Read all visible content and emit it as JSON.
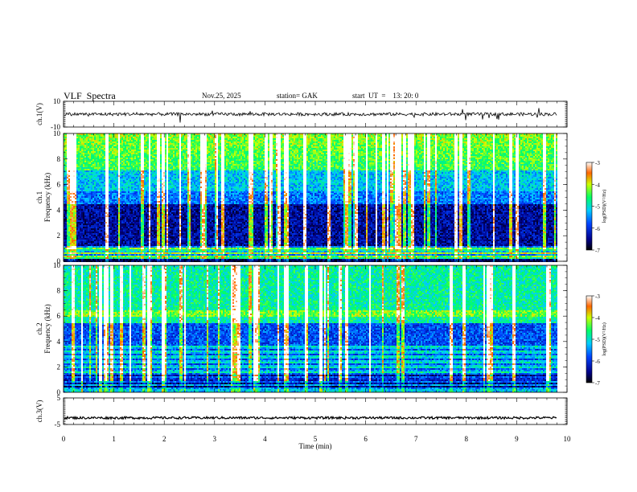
{
  "header": {
    "title": "VLF  Spectra",
    "date": "Nov.25, 2025",
    "station": "station= GAK",
    "start": "start  UT  =    13: 20: 0"
  },
  "chart_data": [
    {
      "type": "line",
      "panel": "ch1-waveform",
      "ylabel": "ch.1(V)",
      "ylim": [
        -10,
        10
      ],
      "yticks": [
        "10",
        "-10"
      ],
      "baseline_value": 0
    },
    {
      "type": "heatmap",
      "panel": "ch1-spectrogram",
      "ylabel": "ch.1\nFrequency  (kHz)",
      "ylabel_lines": [
        "ch.1",
        "Frequency  (kHz)"
      ],
      "ylim": [
        0,
        10
      ],
      "yticks": [
        "10",
        "8",
        "6",
        "4",
        "2",
        "0"
      ],
      "colorbar": {
        "label": "log(PSD)(V²/Hz)",
        "range": [
          -7,
          -3
        ],
        "ticks": [
          "-3",
          "-4",
          "-5",
          "-6",
          "-7"
        ]
      }
    },
    {
      "type": "heatmap",
      "panel": "ch2-spectrogram",
      "ylabel": "ch.2\nFrequency  (kHz)",
      "ylabel_lines": [
        "ch.2",
        "Frequency  (kHz)"
      ],
      "ylim": [
        0,
        10
      ],
      "yticks": [
        "10",
        "8",
        "6",
        "4",
        "2",
        "0"
      ],
      "colorbar": {
        "label": "log(PSD)(V²/Hz)",
        "range": [
          -7,
          -3
        ],
        "ticks": [
          "-3",
          "-4",
          "-5",
          "-6",
          "-7"
        ]
      }
    },
    {
      "type": "line",
      "panel": "ch3-waveform",
      "ylabel": "ch.3(V)",
      "ylim": [
        -5,
        5
      ],
      "yticks": [
        "5",
        "-5"
      ],
      "baseline_value": -2.5
    }
  ],
  "xaxis": {
    "label": "Time  (min)",
    "range": [
      0,
      10
    ],
    "ticks": [
      "0",
      "1",
      "2",
      "3",
      "4",
      "5",
      "6",
      "7",
      "8",
      "9",
      "10"
    ]
  }
}
